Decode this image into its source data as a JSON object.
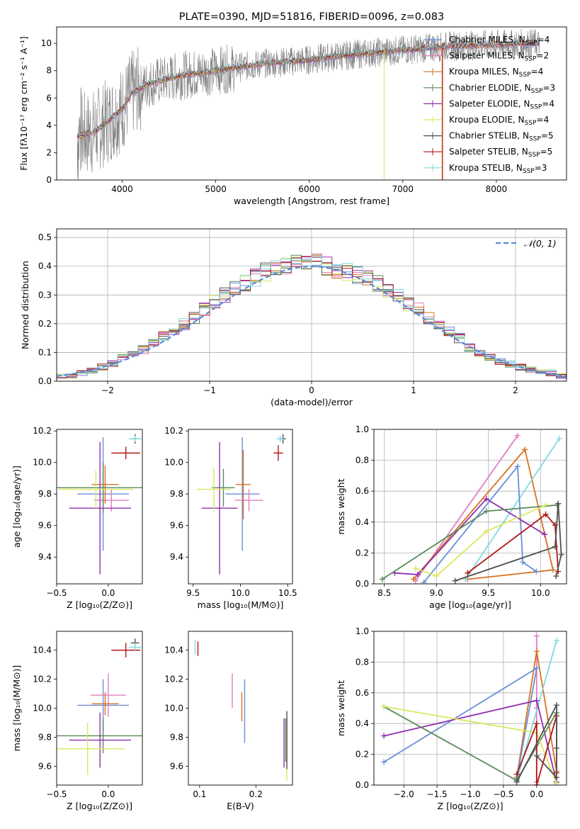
{
  "chart_data": [
    {
      "id": "spectrum",
      "type": "line",
      "title": "PLATE=0390, MJD=51816, FIBERID=0096, z=0.083",
      "xlabel": "wavelength [Angstrom, rest frame]",
      "ylabel": "Flux [fλ10⁻¹⁷ erg cm⁻² s⁻¹ A⁻¹]",
      "xlim": [
        3300,
        8750
      ],
      "ylim": [
        0,
        11.2
      ],
      "xticks": [
        4000,
        5000,
        6000,
        7000,
        8000
      ],
      "yticks": [
        0,
        2,
        4,
        6,
        8,
        10
      ],
      "legend_position": "top-right",
      "data_wavelength_range": [
        3520,
        8460
      ],
      "continuum_x": [
        3520,
        3700,
        3900,
        4000,
        4100,
        4300,
        4600,
        5000,
        5500,
        6000,
        6500,
        7000,
        7500,
        8000,
        8460
      ],
      "continuum_y": [
        3.2,
        3.5,
        4.6,
        5.2,
        6.3,
        7.1,
        7.6,
        8.0,
        8.5,
        8.8,
        9.2,
        9.5,
        9.8,
        9.9,
        10.0
      ],
      "series": [
        {
          "name": "Chabrier MILES, N_SSP=4",
          "color": "#6a8fd8"
        },
        {
          "name": "Salpeter MILES, N_SSP=2",
          "color": "#e07fc0"
        },
        {
          "name": "Kroupa MILES, N_SSP=4",
          "color": "#d97020"
        },
        {
          "name": "Chabrier ELODIE, N_SSP=3",
          "color": "#5a8a5a"
        },
        {
          "name": "Salpeter ELODIE, N_SSP=4",
          "color": "#9030b0"
        },
        {
          "name": "Kroupa ELODIE, N_SSP=4",
          "color": "#d8e860"
        },
        {
          "name": "Chabrier STELIB, N_SSP=5",
          "color": "#505050"
        },
        {
          "name": "Salpeter STELIB, N_SSP=5",
          "color": "#b01818"
        },
        {
          "name": "Kroupa STELIB, N_SSP=3",
          "color": "#80d8e0"
        }
      ]
    },
    {
      "id": "residuals",
      "type": "area",
      "xlabel": "(data-model)/error",
      "ylabel": "Normed distribution",
      "xlim": [
        -2.5,
        2.5
      ],
      "ylim": [
        0,
        0.53
      ],
      "xticks": [
        -2,
        -1,
        0,
        1,
        2
      ],
      "yticks": [
        0.0,
        0.1,
        0.2,
        0.3,
        0.4,
        0.5
      ],
      "grid": true,
      "legend_position": "top-right",
      "reference": {
        "name": "𝒩(0, 1)",
        "mean": 0,
        "sigma": 1,
        "color": "#5b8bd9"
      },
      "bin_width": 0.1,
      "bin_start": -2.5,
      "envelope": [
        0.02,
        0.02,
        0.03,
        0.04,
        0.05,
        0.06,
        0.08,
        0.09,
        0.11,
        0.13,
        0.16,
        0.18,
        0.2,
        0.22,
        0.25,
        0.28,
        0.3,
        0.32,
        0.34,
        0.36,
        0.38,
        0.39,
        0.4,
        0.42,
        0.41,
        0.42,
        0.4,
        0.39,
        0.38,
        0.37,
        0.36,
        0.34,
        0.32,
        0.3,
        0.27,
        0.25,
        0.22,
        0.2,
        0.17,
        0.15,
        0.12,
        0.1,
        0.08,
        0.07,
        0.06,
        0.05,
        0.04,
        0.03,
        0.03,
        0.02
      ]
    },
    {
      "id": "age_vs_Z",
      "type": "scatter",
      "xlabel": "Z [log₁₀(Z/Z⊙)]",
      "ylabel": "age  [log₁₀(age/yr)]",
      "xlim": [
        -0.5,
        0.33
      ],
      "ylim": [
        9.23,
        10.21
      ],
      "xticks": [
        -0.5,
        0.0
      ],
      "yticks": [
        9.4,
        9.6,
        9.8,
        10.0,
        10.2
      ],
      "points": [
        {
          "x": -0.05,
          "y": 9.8,
          "xerr": 0.25,
          "yerr": 0.36,
          "color": "#6a8fd8"
        },
        {
          "x": 0.03,
          "y": 9.76,
          "xerr": 0.17,
          "yerr": 0.07,
          "color": "#e07fc0"
        },
        {
          "x": -0.03,
          "y": 9.86,
          "xerr": 0.13,
          "yerr": 0.12,
          "color": "#d97020"
        },
        {
          "x": -0.05,
          "y": 9.84,
          "xerr": 0.45,
          "yerr": 0.16,
          "color": "#5a8a5a"
        },
        {
          "x": -0.08,
          "y": 9.71,
          "xerr": 0.3,
          "yerr": 0.42,
          "color": "#9030b0"
        },
        {
          "x": -0.12,
          "y": 9.83,
          "xerr": 0.36,
          "yerr": 0.12,
          "color": "#d8e860"
        },
        {
          "x": 0.26,
          "y": 10.15,
          "xerr": 0.04,
          "yerr": 0.03,
          "color": "#505050"
        },
        {
          "x": 0.17,
          "y": 10.06,
          "xerr": 0.14,
          "yerr": 0.04,
          "color": "#b01818"
        },
        {
          "x": 0.26,
          "y": 10.15,
          "xerr": 0.06,
          "yerr": 0.02,
          "color": "#80d8e0"
        }
      ]
    },
    {
      "id": "age_vs_mass",
      "type": "scatter",
      "xlabel": "mass [log₁₀(M/M⊙)]",
      "xlim": [
        9.45,
        10.55
      ],
      "ylim": [
        9.23,
        10.21
      ],
      "xticks": [
        9.5,
        10.0,
        10.5
      ],
      "yticks": [
        9.4,
        9.6,
        9.8,
        10.0,
        10.2
      ],
      "points": [
        {
          "x": 10.02,
          "y": 9.8,
          "xerr": 0.18,
          "yerr": 0.36,
          "color": "#6a8fd8"
        },
        {
          "x": 10.09,
          "y": 9.76,
          "xerr": 0.15,
          "yerr": 0.07,
          "color": "#e07fc0"
        },
        {
          "x": 10.03,
          "y": 9.86,
          "xerr": 0.08,
          "yerr": 0.22,
          "color": "#d97020"
        },
        {
          "x": 9.82,
          "y": 9.84,
          "xerr": 0.12,
          "yerr": 0.12,
          "color": "#5a8a5a"
        },
        {
          "x": 9.78,
          "y": 9.71,
          "xerr": 0.19,
          "yerr": 0.42,
          "color": "#9030b0"
        },
        {
          "x": 9.72,
          "y": 9.83,
          "xerr": 0.18,
          "yerr": 0.14,
          "color": "#d8e860"
        },
        {
          "x": 10.45,
          "y": 10.15,
          "xerr": 0.03,
          "yerr": 0.03,
          "color": "#505050"
        },
        {
          "x": 10.4,
          "y": 10.06,
          "xerr": 0.05,
          "yerr": 0.05,
          "color": "#b01818"
        },
        {
          "x": 10.42,
          "y": 10.15,
          "xerr": 0.04,
          "yerr": 0.02,
          "color": "#80d8e0"
        }
      ]
    },
    {
      "id": "weight_vs_age",
      "type": "line",
      "xlabel": "age  [log₁₀(age/yr)]",
      "ylabel": "mass weight",
      "xlim": [
        8.4,
        10.25
      ],
      "ylim": [
        0,
        1.0
      ],
      "xticks": [
        8.5,
        9.0,
        9.5,
        10.0
      ],
      "yticks": [
        0.0,
        0.2,
        0.4,
        0.6,
        0.8,
        1.0
      ],
      "grid": true,
      "series": [
        {
          "color": "#e07fc0",
          "x": [
            8.8,
            9.78
          ],
          "y": [
            0.02,
            0.96
          ]
        },
        {
          "color": "#d97020",
          "x": [
            8.78,
            9.85,
            10.12,
            9.3
          ],
          "y": [
            0.03,
            0.87,
            0.09,
            0.03
          ]
        },
        {
          "color": "#80d8e0",
          "x": [
            9.28,
            10.18
          ],
          "y": [
            0.03,
            0.94
          ]
        },
        {
          "color": "#6a8fd8",
          "x": [
            8.88,
            9.78,
            9.83,
            9.96
          ],
          "y": [
            0.01,
            0.76,
            0.14,
            0.08
          ]
        },
        {
          "color": "#9030b0",
          "x": [
            8.6,
            8.82,
            9.48,
            10.04
          ],
          "y": [
            0.07,
            0.06,
            0.55,
            0.32
          ]
        },
        {
          "color": "#5a8a5a",
          "x": [
            8.48,
            9.48,
            10.16
          ],
          "y": [
            0.03,
            0.47,
            0.51
          ]
        },
        {
          "color": "#d8e860",
          "x": [
            8.8,
            9.0,
            9.48,
            10.05
          ],
          "y": [
            0.1,
            0.05,
            0.34,
            0.51
          ]
        },
        {
          "color": "#b01818",
          "x": [
            9.3,
            10.05,
            10.14,
            10.17
          ],
          "y": [
            0.07,
            0.45,
            0.38,
            0.08
          ]
        },
        {
          "color": "#505050",
          "x": [
            9.18,
            10.14,
            10.17,
            10.2,
            10.15
          ],
          "y": [
            0.02,
            0.24,
            0.52,
            0.19,
            0.05
          ]
        }
      ]
    },
    {
      "id": "mass_vs_Z",
      "type": "scatter",
      "xlabel": "Z [log₁₀(Z/Z⊙)]",
      "ylabel": "mass [log₁₀(M/M⊙)]",
      "xlim": [
        -0.5,
        0.33
      ],
      "ylim": [
        9.47,
        10.53
      ],
      "xticks": [
        -0.5,
        0.0
      ],
      "yticks": [
        9.6,
        9.8,
        10.0,
        10.2,
        10.4
      ],
      "points": [
        {
          "x": -0.05,
          "y": 10.02,
          "xerr": 0.25,
          "yerr": 0.18,
          "color": "#6a8fd8"
        },
        {
          "x": 0.0,
          "y": 10.09,
          "xerr": 0.17,
          "yerr": 0.15,
          "color": "#e07fc0"
        },
        {
          "x": -0.03,
          "y": 10.03,
          "xerr": 0.13,
          "yerr": 0.08,
          "color": "#d97020"
        },
        {
          "x": -0.05,
          "y": 9.81,
          "xerr": 0.45,
          "yerr": 0.12,
          "color": "#5a8a5a"
        },
        {
          "x": -0.08,
          "y": 9.78,
          "xerr": 0.3,
          "yerr": 0.19,
          "color": "#9030b0"
        },
        {
          "x": -0.2,
          "y": 9.72,
          "xerr": 0.36,
          "yerr": 0.18,
          "color": "#d8e860"
        },
        {
          "x": 0.26,
          "y": 10.45,
          "xerr": 0.04,
          "yerr": 0.03,
          "color": "#505050"
        },
        {
          "x": 0.17,
          "y": 10.4,
          "xerr": 0.14,
          "yerr": 0.05,
          "color": "#b01818"
        },
        {
          "x": 0.26,
          "y": 10.42,
          "xerr": 0.06,
          "yerr": 0.03,
          "color": "#80d8e0"
        }
      ]
    },
    {
      "id": "mass_vs_ebv",
      "type": "scatter",
      "xlabel": "E(B-V)",
      "xlim": [
        0.08,
        0.265
      ],
      "ylim": [
        9.47,
        10.53
      ],
      "xticks": [
        0.1,
        0.2
      ],
      "yticks": [
        9.6,
        9.8,
        10.0,
        10.2,
        10.4
      ],
      "points": [
        {
          "x": 0.18,
          "y": 9.98,
          "yerr": 0.22,
          "color": "#6a8fd8"
        },
        {
          "x": 0.158,
          "y": 10.12,
          "yerr": 0.12,
          "color": "#e07fc0"
        },
        {
          "x": 0.175,
          "y": 10.01,
          "yerr": 0.1,
          "color": "#d97020"
        },
        {
          "x": 0.253,
          "y": 9.78,
          "yerr": 0.15,
          "color": "#5a8a5a"
        },
        {
          "x": 0.25,
          "y": 9.76,
          "yerr": 0.17,
          "color": "#9030b0"
        },
        {
          "x": 0.255,
          "y": 9.7,
          "yerr": 0.2,
          "color": "#d8e860"
        },
        {
          "x": 0.255,
          "y": 9.78,
          "yerr": 0.2,
          "color": "#505050"
        },
        {
          "x": 0.097,
          "y": 10.41,
          "yerr": 0.05,
          "color": "#b01818"
        },
        {
          "x": 0.092,
          "y": 10.42,
          "yerr": 0.05,
          "color": "#80d8e0"
        }
      ]
    },
    {
      "id": "weight_vs_Z",
      "type": "line",
      "xlabel": "Z [log₁₀(Z/Z⊙)]",
      "ylabel": "mass weight",
      "xlim": [
        -2.45,
        0.45
      ],
      "ylim": [
        0,
        1.0
      ],
      "xticks": [
        -2.0,
        -1.5,
        -1.0,
        -0.5,
        0.0
      ],
      "yticks": [
        0.0,
        0.2,
        0.4,
        0.6,
        0.8,
        1.0
      ],
      "grid": true,
      "series": [
        {
          "color": "#e07fc0",
          "x": [
            0.0,
            0.0,
            0.0
          ],
          "y": [
            0.97,
            0.5,
            0.02
          ]
        },
        {
          "color": "#d97020",
          "x": [
            -0.3,
            0.0,
            0.3
          ],
          "y": [
            0.05,
            0.87,
            0.09
          ]
        },
        {
          "color": "#80d8e0",
          "x": [
            -0.3,
            0.3
          ],
          "y": [
            0.03,
            0.94
          ]
        },
        {
          "color": "#6a8fd8",
          "x": [
            -2.3,
            0.0,
            -0.3
          ],
          "y": [
            0.15,
            0.76,
            0.04
          ]
        },
        {
          "color": "#9030b0",
          "x": [
            -2.3,
            0.0,
            0.3
          ],
          "y": [
            0.32,
            0.55,
            0.02
          ]
        },
        {
          "color": "#5a8a5a",
          "x": [
            -2.3,
            -0.3,
            0.3
          ],
          "y": [
            0.51,
            0.03,
            0.47
          ]
        },
        {
          "color": "#d8e860",
          "x": [
            -2.3,
            0.0,
            0.3
          ],
          "y": [
            0.51,
            0.34,
            0.01
          ]
        },
        {
          "color": "#b01818",
          "x": [
            -0.3,
            0.0,
            0.0,
            0.3,
            0.3
          ],
          "y": [
            0.07,
            0.4,
            0.0,
            0.45,
            0.08
          ]
        },
        {
          "color": "#505050",
          "x": [
            -0.3,
            0.3,
            0.3,
            0.3,
            0.0
          ],
          "y": [
            0.02,
            0.52,
            0.24,
            0.05,
            0.19
          ]
        }
      ]
    }
  ]
}
